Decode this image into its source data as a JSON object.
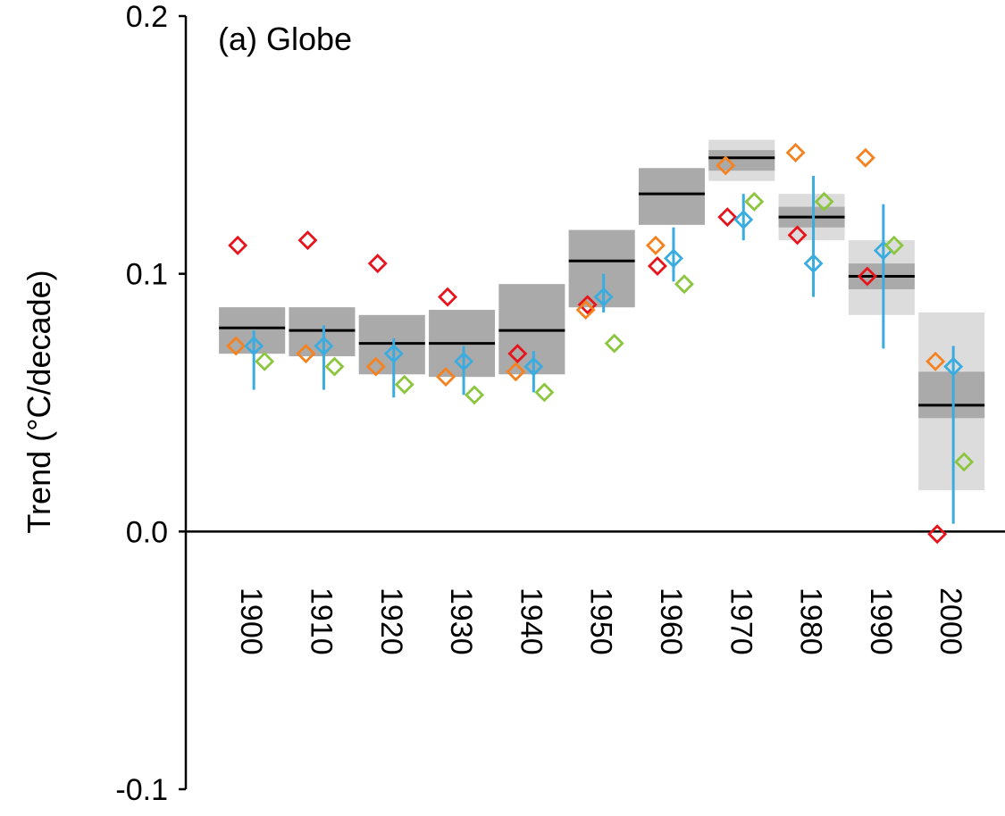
{
  "chart_data": {
    "type": "scatter",
    "title": "(a) Globe",
    "ylabel": "Trend (°C/decade)",
    "ylim": [
      -0.1,
      0.2
    ],
    "yticks": [
      {
        "value": 0.2,
        "label": "0.2"
      },
      {
        "value": 0.1,
        "label": "0.1"
      },
      {
        "value": 0.0,
        "label": "0.0"
      },
      {
        "value": -0.1,
        "label": "-0.1"
      }
    ],
    "categories": [
      "1900",
      "1910",
      "1920",
      "1930",
      "1940",
      "1950",
      "1960",
      "1970",
      "1980",
      "1990",
      "2000"
    ],
    "ensemble": {
      "median": [
        0.079,
        0.078,
        0.073,
        0.073,
        0.078,
        0.105,
        0.131,
        0.145,
        0.122,
        0.099,
        0.049
      ],
      "outer_low": [
        0.069,
        0.068,
        0.061,
        0.06,
        0.061,
        0.087,
        0.119,
        0.136,
        0.113,
        0.084,
        0.016
      ],
      "outer_high": [
        0.087,
        0.087,
        0.084,
        0.086,
        0.096,
        0.117,
        0.141,
        0.152,
        0.131,
        0.113,
        0.085
      ],
      "inner_low": [
        0.069,
        0.068,
        0.061,
        0.06,
        0.061,
        0.087,
        0.119,
        0.14,
        0.118,
        0.094,
        0.044
      ],
      "inner_high": [
        0.087,
        0.087,
        0.084,
        0.086,
        0.096,
        0.117,
        0.141,
        0.148,
        0.126,
        0.104,
        0.062
      ]
    },
    "series": [
      {
        "color": "#e8141c",
        "marker": "diamond",
        "values": [
          0.111,
          0.113,
          0.104,
          0.091,
          0.069,
          0.088,
          0.103,
          0.122,
          0.115,
          0.099,
          -0.001
        ]
      },
      {
        "color": "#f58220",
        "marker": "diamond",
        "values": [
          0.072,
          0.069,
          0.064,
          0.06,
          0.062,
          0.086,
          0.111,
          0.142,
          0.147,
          0.145,
          0.066
        ]
      },
      {
        "color": "#3aace0",
        "marker": "diamond",
        "error_bars": true,
        "values": [
          0.072,
          0.072,
          0.069,
          0.066,
          0.064,
          0.091,
          0.106,
          0.121,
          0.104,
          0.109,
          0.064
        ],
        "err_low": [
          0.055,
          0.055,
          0.052,
          0.053,
          0.054,
          0.085,
          0.097,
          0.113,
          0.091,
          0.071,
          0.003
        ],
        "err_high": [
          0.078,
          0.08,
          0.075,
          0.072,
          0.07,
          0.1,
          0.118,
          0.131,
          0.138,
          0.127,
          0.072
        ]
      },
      {
        "color": "#8cc63f",
        "marker": "diamond",
        "values": [
          0.066,
          0.064,
          0.057,
          0.053,
          0.054,
          0.073,
          0.096,
          0.128,
          0.128,
          0.111,
          0.027
        ]
      }
    ]
  }
}
